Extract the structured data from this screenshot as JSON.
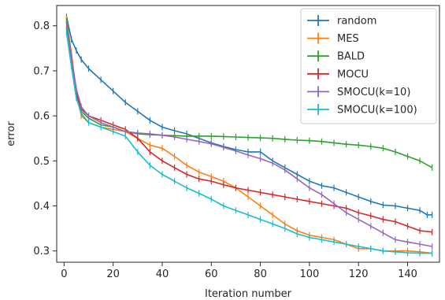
{
  "chart_data": {
    "type": "line",
    "xlabel": "Iteration number",
    "ylabel": "error",
    "xlim": [
      -3,
      153
    ],
    "ylim": [
      0.275,
      0.845
    ],
    "xticks": [
      0,
      20,
      40,
      60,
      80,
      100,
      120,
      140
    ],
    "yticks": [
      0.3,
      0.4,
      0.5,
      0.6,
      0.7,
      0.8
    ],
    "grid": false,
    "legend_position": "top-right",
    "marker": "vertical error-bar ticks",
    "series": [
      {
        "name": "random",
        "color": "#1f77b4",
        "x": [
          1,
          3,
          5,
          7,
          10,
          15,
          20,
          25,
          30,
          35,
          40,
          45,
          50,
          55,
          60,
          65,
          70,
          75,
          80,
          85,
          90,
          95,
          100,
          105,
          110,
          115,
          120,
          125,
          130,
          135,
          140,
          145,
          148,
          150
        ],
        "y": [
          0.82,
          0.77,
          0.745,
          0.725,
          0.705,
          0.68,
          0.655,
          0.63,
          0.61,
          0.59,
          0.575,
          0.567,
          0.56,
          0.55,
          0.54,
          0.532,
          0.525,
          0.52,
          0.52,
          0.5,
          0.485,
          0.47,
          0.455,
          0.445,
          0.44,
          0.43,
          0.42,
          0.41,
          0.402,
          0.4,
          0.395,
          0.39,
          0.38,
          0.38
        ]
      },
      {
        "name": "MES",
        "color": "#ff7f0e",
        "x": [
          1,
          3,
          5,
          7,
          10,
          15,
          20,
          25,
          30,
          35,
          40,
          45,
          50,
          55,
          60,
          65,
          70,
          75,
          80,
          85,
          90,
          95,
          100,
          105,
          110,
          115,
          120,
          125,
          130,
          135,
          140,
          145,
          150
        ],
        "y": [
          0.815,
          0.74,
          0.65,
          0.6,
          0.585,
          0.575,
          0.57,
          0.565,
          0.55,
          0.535,
          0.528,
          0.51,
          0.49,
          0.475,
          0.465,
          0.455,
          0.44,
          0.42,
          0.4,
          0.38,
          0.36,
          0.345,
          0.335,
          0.33,
          0.325,
          0.315,
          0.305,
          0.305,
          0.3,
          0.3,
          0.3,
          0.298,
          0.295
        ]
      },
      {
        "name": "BALD",
        "color": "#2ca02c",
        "x": [
          1,
          3,
          5,
          7,
          10,
          15,
          20,
          25,
          30,
          35,
          40,
          45,
          50,
          55,
          60,
          65,
          70,
          75,
          80,
          85,
          90,
          95,
          100,
          105,
          110,
          115,
          120,
          125,
          130,
          135,
          140,
          145,
          150
        ],
        "y": [
          0.81,
          0.73,
          0.65,
          0.61,
          0.595,
          0.58,
          0.575,
          0.565,
          0.56,
          0.558,
          0.557,
          0.556,
          0.555,
          0.555,
          0.555,
          0.554,
          0.553,
          0.552,
          0.551,
          0.55,
          0.548,
          0.546,
          0.545,
          0.543,
          0.54,
          0.537,
          0.535,
          0.532,
          0.528,
          0.52,
          0.51,
          0.5,
          0.485
        ]
      },
      {
        "name": "MOCU",
        "color": "#d62728",
        "x": [
          1,
          3,
          5,
          7,
          10,
          15,
          20,
          25,
          30,
          35,
          40,
          45,
          50,
          55,
          60,
          65,
          70,
          75,
          80,
          85,
          90,
          95,
          100,
          105,
          110,
          115,
          120,
          125,
          130,
          135,
          140,
          145,
          150
        ],
        "y": [
          0.79,
          0.72,
          0.65,
          0.615,
          0.6,
          0.59,
          0.58,
          0.57,
          0.55,
          0.52,
          0.5,
          0.485,
          0.47,
          0.46,
          0.455,
          0.447,
          0.44,
          0.435,
          0.43,
          0.425,
          0.42,
          0.415,
          0.41,
          0.405,
          0.4,
          0.395,
          0.385,
          0.378,
          0.37,
          0.365,
          0.355,
          0.345,
          0.342
        ]
      },
      {
        "name": "SMOCU(k=10)",
        "color": "#9467bd",
        "x": [
          1,
          3,
          5,
          7,
          10,
          15,
          20,
          25,
          30,
          35,
          40,
          45,
          50,
          55,
          60,
          65,
          70,
          75,
          80,
          85,
          90,
          95,
          100,
          105,
          110,
          115,
          120,
          125,
          130,
          135,
          140,
          145,
          150
        ],
        "y": [
          0.8,
          0.73,
          0.66,
          0.62,
          0.6,
          0.585,
          0.575,
          0.565,
          0.562,
          0.56,
          0.557,
          0.553,
          0.548,
          0.543,
          0.538,
          0.53,
          0.522,
          0.513,
          0.505,
          0.495,
          0.48,
          0.46,
          0.44,
          0.425,
          0.405,
          0.385,
          0.37,
          0.355,
          0.34,
          0.325,
          0.32,
          0.315,
          0.31
        ]
      },
      {
        "name": "SMOCU(k=100)",
        "color": "#17becf",
        "x": [
          1,
          3,
          5,
          7,
          10,
          15,
          20,
          25,
          30,
          35,
          40,
          45,
          50,
          55,
          60,
          65,
          70,
          75,
          80,
          85,
          90,
          95,
          100,
          105,
          110,
          115,
          120,
          125,
          130,
          135,
          140,
          145,
          150
        ],
        "y": [
          0.785,
          0.71,
          0.64,
          0.605,
          0.585,
          0.575,
          0.565,
          0.555,
          0.52,
          0.49,
          0.47,
          0.455,
          0.44,
          0.428,
          0.415,
          0.4,
          0.39,
          0.38,
          0.37,
          0.36,
          0.35,
          0.338,
          0.33,
          0.325,
          0.32,
          0.315,
          0.31,
          0.305,
          0.3,
          0.298,
          0.296,
          0.295,
          0.295
        ]
      }
    ]
  }
}
